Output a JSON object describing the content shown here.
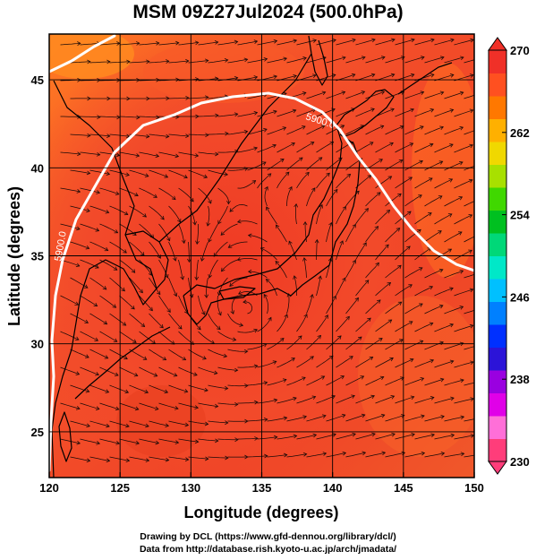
{
  "title": "MSM 09Z27Jul2024 (500.0hPa)",
  "x_axis": {
    "label": "Longitude (degrees)",
    "min": 120,
    "max": 150,
    "ticks": [
      "120",
      "125",
      "130",
      "135",
      "140",
      "145",
      "150"
    ]
  },
  "y_axis": {
    "label": "Latitude  (degrees)",
    "min": 22.4,
    "max": 47.6,
    "ticks": [
      "25",
      "30",
      "35",
      "40",
      "45"
    ]
  },
  "colorbar": {
    "min": 230,
    "max": 270,
    "tick_labels": [
      "270",
      "262",
      "254",
      "246",
      "238",
      "230"
    ],
    "colors": [
      "#ff3d7a",
      "#ff6fd8",
      "#e000e8",
      "#9a00e0",
      "#2c14d8",
      "#0030ff",
      "#0080ff",
      "#00c0ff",
      "#00e8c8",
      "#00d878",
      "#00c020",
      "#40d800",
      "#a8e000",
      "#f0d800",
      "#ffb000",
      "#ff7800",
      "#ff5020",
      "#f03028"
    ]
  },
  "contours": [
    {
      "label": "5900.0"
    },
    {
      "label": "5900.0"
    }
  ],
  "credits": {
    "line1": "Drawing by DCL (https://www.gfd-dennou.org/library/dcl/)",
    "line2": "Data from http://database.rish.kyoto-u.ac.jp/arch/jmadata/"
  },
  "colors": {
    "field_warm": "#f24a26",
    "field_hot": "#e8361f",
    "field_orange": "#ff7a1e",
    "contour": "#ffffff",
    "coast": "#000000"
  }
}
